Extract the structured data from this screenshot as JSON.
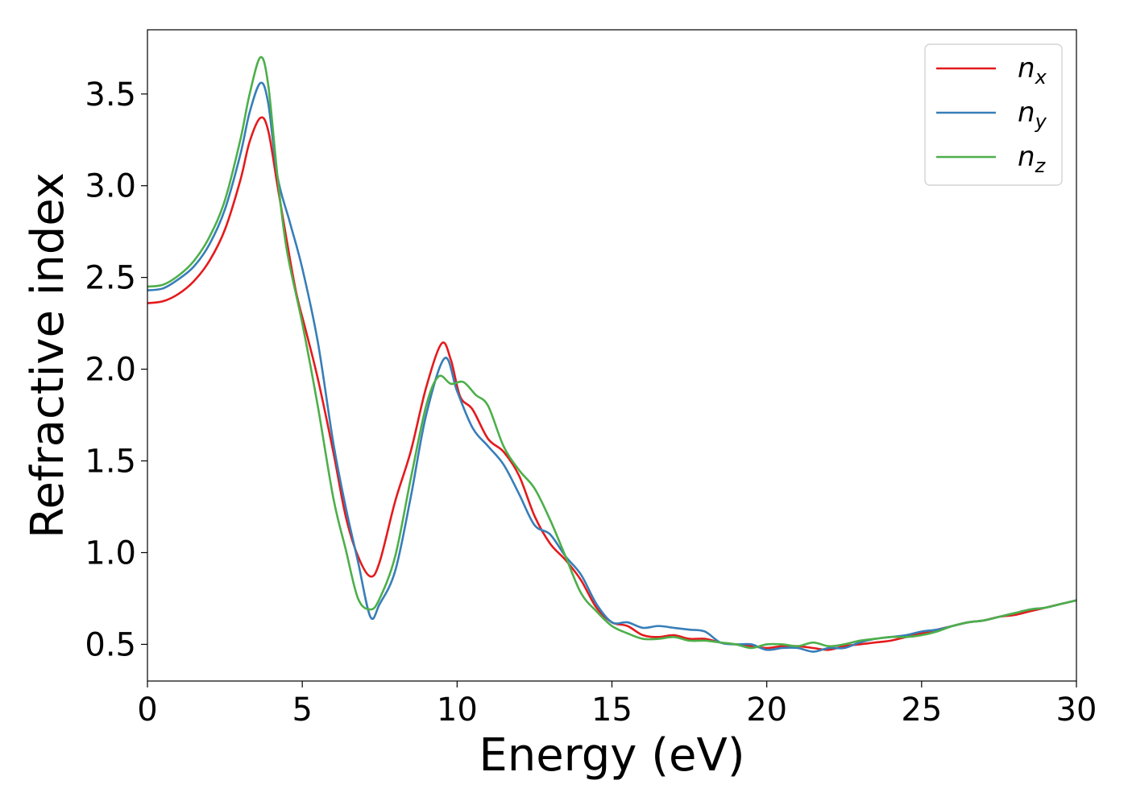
{
  "chart_data": {
    "type": "line",
    "title": "",
    "xlabel": "Energy (eV)",
    "ylabel": "Refractive index",
    "xlim": [
      0,
      30
    ],
    "ylim": [
      0.3,
      3.85
    ],
    "xticks": [
      0,
      5,
      10,
      15,
      20,
      25,
      30
    ],
    "yticks": [
      0.5,
      1.0,
      1.5,
      2.0,
      2.5,
      3.0,
      3.5
    ],
    "xtick_labels": [
      "0",
      "5",
      "10",
      "15",
      "20",
      "25",
      "30"
    ],
    "ytick_labels": [
      "0.5",
      "1.0",
      "1.5",
      "2.0",
      "2.5",
      "3.0",
      "3.5"
    ],
    "grid": false,
    "legend": "top-right",
    "series": [
      {
        "name": "n_x",
        "label_main": "n",
        "label_sub": "x",
        "color": "#e41a1c",
        "points": [
          [
            0,
            2.36
          ],
          [
            0.5,
            2.37
          ],
          [
            1,
            2.41
          ],
          [
            1.5,
            2.48
          ],
          [
            2,
            2.59
          ],
          [
            2.5,
            2.76
          ],
          [
            3,
            3.03
          ],
          [
            3.3,
            3.24
          ],
          [
            3.65,
            3.37
          ],
          [
            3.9,
            3.3
          ],
          [
            4.2,
            3.0
          ],
          [
            4.5,
            2.7
          ],
          [
            4.8,
            2.42
          ],
          [
            5.1,
            2.22
          ],
          [
            5.5,
            1.95
          ],
          [
            6,
            1.55
          ],
          [
            6.4,
            1.2
          ],
          [
            6.8,
            0.98
          ],
          [
            7.2,
            0.87
          ],
          [
            7.5,
            0.95
          ],
          [
            8,
            1.28
          ],
          [
            8.5,
            1.55
          ],
          [
            9,
            1.9
          ],
          [
            9.5,
            2.14
          ],
          [
            9.8,
            2.05
          ],
          [
            10.1,
            1.85
          ],
          [
            10.5,
            1.78
          ],
          [
            11,
            1.62
          ],
          [
            11.5,
            1.55
          ],
          [
            12,
            1.42
          ],
          [
            12.5,
            1.2
          ],
          [
            13,
            1.05
          ],
          [
            13.5,
            0.96
          ],
          [
            14,
            0.85
          ],
          [
            14.5,
            0.7
          ],
          [
            15,
            0.62
          ],
          [
            15.5,
            0.6
          ],
          [
            16,
            0.55
          ],
          [
            16.5,
            0.54
          ],
          [
            17,
            0.55
          ],
          [
            17.5,
            0.53
          ],
          [
            18,
            0.53
          ],
          [
            18.5,
            0.51
          ],
          [
            19,
            0.5
          ],
          [
            19.5,
            0.49
          ],
          [
            20,
            0.48
          ],
          [
            20.5,
            0.49
          ],
          [
            21,
            0.49
          ],
          [
            21.5,
            0.48
          ],
          [
            22,
            0.47
          ],
          [
            22.5,
            0.49
          ],
          [
            23,
            0.5
          ],
          [
            23.5,
            0.51
          ],
          [
            24,
            0.52
          ],
          [
            24.5,
            0.54
          ],
          [
            25,
            0.56
          ],
          [
            25.5,
            0.58
          ],
          [
            26,
            0.6
          ],
          [
            26.5,
            0.62
          ],
          [
            27,
            0.63
          ],
          [
            27.5,
            0.65
          ],
          [
            28,
            0.66
          ],
          [
            28.5,
            0.68
          ],
          [
            29,
            0.7
          ],
          [
            29.5,
            0.72
          ],
          [
            30,
            0.74
          ]
        ]
      },
      {
        "name": "n_y",
        "label_main": "n",
        "label_sub": "y",
        "color": "#377eb8",
        "points": [
          [
            0,
            2.43
          ],
          [
            0.5,
            2.44
          ],
          [
            1,
            2.49
          ],
          [
            1.5,
            2.56
          ],
          [
            2,
            2.68
          ],
          [
            2.5,
            2.87
          ],
          [
            3,
            3.17
          ],
          [
            3.3,
            3.4
          ],
          [
            3.65,
            3.56
          ],
          [
            3.9,
            3.45
          ],
          [
            4.2,
            3.05
          ],
          [
            4.6,
            2.8
          ],
          [
            5,
            2.55
          ],
          [
            5.5,
            2.15
          ],
          [
            6,
            1.6
          ],
          [
            6.4,
            1.25
          ],
          [
            6.8,
            0.95
          ],
          [
            7.2,
            0.65
          ],
          [
            7.5,
            0.72
          ],
          [
            8,
            0.9
          ],
          [
            8.5,
            1.3
          ],
          [
            9,
            1.75
          ],
          [
            9.6,
            2.06
          ],
          [
            10,
            1.88
          ],
          [
            10.5,
            1.68
          ],
          [
            11,
            1.58
          ],
          [
            11.5,
            1.48
          ],
          [
            12,
            1.32
          ],
          [
            12.5,
            1.15
          ],
          [
            13,
            1.1
          ],
          [
            13.5,
            0.98
          ],
          [
            14,
            0.88
          ],
          [
            14.5,
            0.72
          ],
          [
            15,
            0.62
          ],
          [
            15.5,
            0.62
          ],
          [
            16,
            0.59
          ],
          [
            16.5,
            0.6
          ],
          [
            17,
            0.59
          ],
          [
            17.5,
            0.58
          ],
          [
            18,
            0.57
          ],
          [
            18.5,
            0.51
          ],
          [
            19,
            0.5
          ],
          [
            19.5,
            0.5
          ],
          [
            20,
            0.47
          ],
          [
            20.5,
            0.48
          ],
          [
            21,
            0.48
          ],
          [
            21.5,
            0.46
          ],
          [
            22,
            0.48
          ],
          [
            22.5,
            0.48
          ],
          [
            23,
            0.51
          ],
          [
            23.5,
            0.53
          ],
          [
            24,
            0.54
          ],
          [
            24.5,
            0.55
          ],
          [
            25,
            0.57
          ],
          [
            25.5,
            0.58
          ],
          [
            26,
            0.6
          ],
          [
            26.5,
            0.62
          ],
          [
            27,
            0.63
          ],
          [
            27.5,
            0.65
          ],
          [
            28,
            0.67
          ],
          [
            28.5,
            0.69
          ],
          [
            29,
            0.7
          ],
          [
            29.5,
            0.72
          ],
          [
            30,
            0.74
          ]
        ]
      },
      {
        "name": "n_z",
        "label_main": "n",
        "label_sub": "z",
        "color": "#4daf4a",
        "points": [
          [
            0,
            2.45
          ],
          [
            0.5,
            2.46
          ],
          [
            1,
            2.51
          ],
          [
            1.5,
            2.59
          ],
          [
            2,
            2.72
          ],
          [
            2.5,
            2.92
          ],
          [
            3,
            3.25
          ],
          [
            3.3,
            3.5
          ],
          [
            3.65,
            3.7
          ],
          [
            3.9,
            3.55
          ],
          [
            4.2,
            3.05
          ],
          [
            4.5,
            2.65
          ],
          [
            5,
            2.25
          ],
          [
            5.5,
            1.8
          ],
          [
            6,
            1.3
          ],
          [
            6.4,
            1.02
          ],
          [
            6.8,
            0.75
          ],
          [
            7.2,
            0.69
          ],
          [
            7.5,
            0.75
          ],
          [
            8,
            0.98
          ],
          [
            8.5,
            1.4
          ],
          [
            9,
            1.8
          ],
          [
            9.4,
            1.96
          ],
          [
            9.8,
            1.92
          ],
          [
            10.2,
            1.93
          ],
          [
            10.6,
            1.86
          ],
          [
            11,
            1.8
          ],
          [
            11.5,
            1.58
          ],
          [
            12,
            1.45
          ],
          [
            12.5,
            1.35
          ],
          [
            13,
            1.18
          ],
          [
            13.5,
            0.98
          ],
          [
            14,
            0.78
          ],
          [
            14.5,
            0.68
          ],
          [
            15,
            0.6
          ],
          [
            15.5,
            0.56
          ],
          [
            16,
            0.53
          ],
          [
            16.5,
            0.53
          ],
          [
            17,
            0.54
          ],
          [
            17.5,
            0.52
          ],
          [
            18,
            0.52
          ],
          [
            18.5,
            0.51
          ],
          [
            19,
            0.5
          ],
          [
            19.5,
            0.48
          ],
          [
            20,
            0.5
          ],
          [
            20.5,
            0.5
          ],
          [
            21,
            0.49
          ],
          [
            21.5,
            0.51
          ],
          [
            22,
            0.49
          ],
          [
            22.5,
            0.5
          ],
          [
            23,
            0.52
          ],
          [
            23.5,
            0.53
          ],
          [
            24,
            0.54
          ],
          [
            24.5,
            0.54
          ],
          [
            25,
            0.55
          ],
          [
            25.5,
            0.57
          ],
          [
            26,
            0.6
          ],
          [
            26.5,
            0.62
          ],
          [
            27,
            0.63
          ],
          [
            27.5,
            0.65
          ],
          [
            28,
            0.67
          ],
          [
            28.5,
            0.69
          ],
          [
            29,
            0.7
          ],
          [
            29.5,
            0.72
          ],
          [
            30,
            0.74
          ]
        ]
      }
    ]
  }
}
